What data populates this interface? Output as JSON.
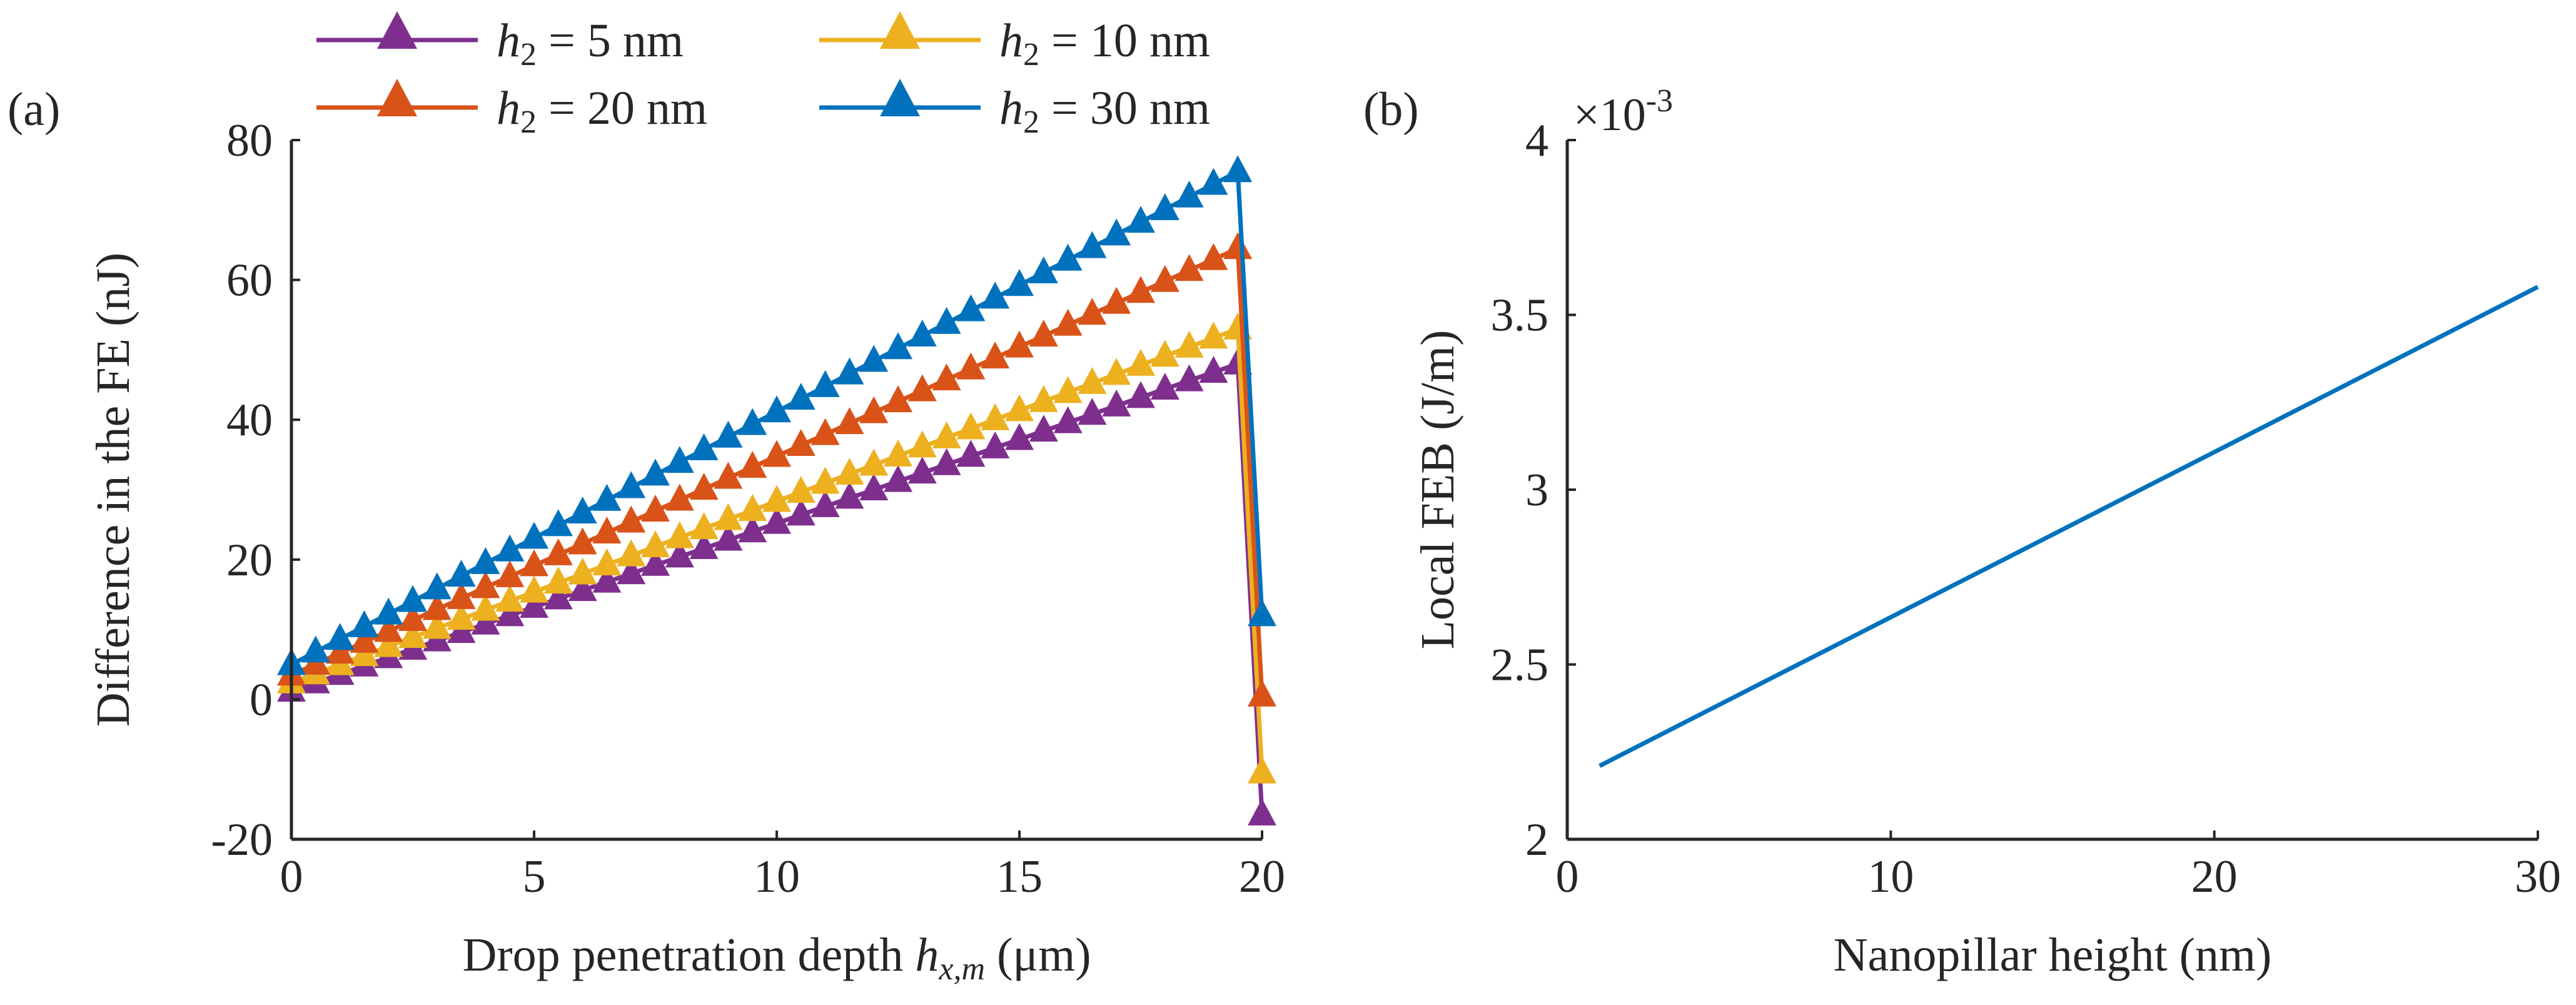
{
  "chart_data": [
    {
      "panel": "(a)",
      "type": "line",
      "xlabel": "Drop penetration depth h_x,m (μm)",
      "xlabel_parts": {
        "before": "Drop penetration depth ",
        "var": "h",
        "sub": "x,m",
        "after": " (μm)"
      },
      "ylabel": "Difference in the FE (nJ)",
      "xlim": [
        0,
        20
      ],
      "ylim": [
        -20,
        80
      ],
      "xticks": [
        "0",
        "5",
        "10",
        "15",
        "20"
      ],
      "yticks": [
        "-20",
        "0",
        "20",
        "40",
        "60",
        "80"
      ],
      "marker": "triangle",
      "legend_position": "top",
      "series": [
        {
          "name": "h2 = 5 nm",
          "label_var": "h",
          "label_sub": "2",
          "label_rest": " = 5 nm",
          "color": "#7E2F8E",
          "start": 1.2,
          "peak": 48,
          "x_peak": 19.5,
          "end_x": 20,
          "end_y": -16.5
        },
        {
          "name": "h2 = 10 nm",
          "label_var": "h",
          "label_sub": "2",
          "label_rest": " = 10 nm",
          "color": "#EDB120",
          "start": 2.4,
          "peak": 53,
          "x_peak": 19.5,
          "end_x": 20,
          "end_y": -10.5
        },
        {
          "name": "h2 = 20 nm",
          "label_var": "h",
          "label_sub": "2",
          "label_rest": " = 20 nm",
          "color": "#D95319",
          "start": 3.5,
          "peak": 64.5,
          "x_peak": 19.5,
          "end_x": 20,
          "end_y": 0.5
        },
        {
          "name": "h2 = 30 nm",
          "label_var": "h",
          "label_sub": "2",
          "label_rest": " = 30 nm",
          "color": "#0072BD",
          "start": 5,
          "peak": 75.5,
          "x_peak": 19.5,
          "end_x": 20,
          "end_y": 12
        }
      ]
    },
    {
      "panel": "(b)",
      "type": "line",
      "xlabel": "Nanopillar height (nm)",
      "ylabel": "Local FEB (J/m)",
      "xlim": [
        0,
        30
      ],
      "ylim": [
        2,
        4
      ],
      "xticks": [
        "0",
        "10",
        "20",
        "30"
      ],
      "yticks": [
        "2",
        "2.5",
        "3",
        "3.5",
        "4"
      ],
      "y_exponent": "×10",
      "y_exponent_power": "-3",
      "series": [
        {
          "name": "Local FEB",
          "color": "#0072BD",
          "x": [
            1,
            30
          ],
          "y": [
            2.21,
            3.58
          ]
        }
      ]
    }
  ]
}
